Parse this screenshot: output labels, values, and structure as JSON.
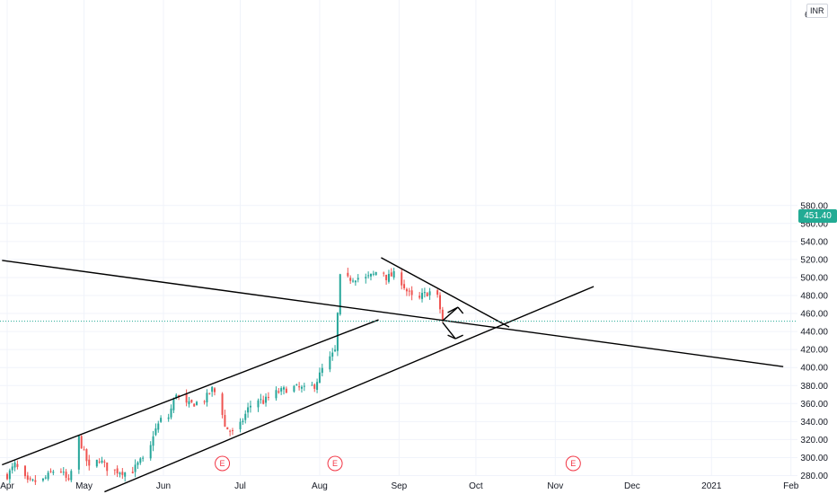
{
  "currency": "INR",
  "price": {
    "last_label": "451.40",
    "last": 451.4
  },
  "colors": {
    "up": "#26a69a",
    "down": "#ef5350",
    "last_price": "#22ab94",
    "earnings": "#f23645",
    "trendline": "#000000"
  },
  "earnings_marker": "E",
  "chart_data": {
    "type": "candlestick",
    "y_ticks": [
      "280.00",
      "300.00",
      "320.00",
      "340.00",
      "360.00",
      "380.00",
      "400.00",
      "420.00",
      "440.00",
      "460.00",
      "480.00",
      "500.00",
      "520.00",
      "540.00",
      "560.00",
      "580.00"
    ],
    "y_ticks_top_clipped": "6",
    "ylim": [
      262,
      606
    ],
    "x_ticks": [
      "Apr",
      "May",
      "Jun",
      "Jul",
      "Aug",
      "Sep",
      "Oct",
      "Nov",
      "Dec",
      "2021",
      "Feb"
    ],
    "x_tick_days": [
      0,
      30,
      61,
      91,
      122,
      153,
      183,
      214,
      244,
      275,
      306
    ],
    "earnings_days": [
      84,
      128,
      221
    ],
    "last_price": 451.4,
    "trendlines": [
      {
        "name": "channel-upper",
        "from": [
          -2,
          292
        ],
        "to": [
          145,
          453
        ]
      },
      {
        "name": "channel-lower",
        "from": [
          38,
          262
        ],
        "to": [
          229,
          490
        ]
      },
      {
        "name": "long-resistance",
        "from": [
          -2,
          519
        ],
        "to": [
          303,
          401
        ]
      },
      {
        "name": "wedge-upper",
        "from": [
          146,
          522
        ],
        "to": [
          196,
          445
        ]
      },
      {
        "name": "arrow-up-shaft",
        "from": [
          170,
          452
        ],
        "to": [
          176,
          467
        ]
      },
      {
        "name": "arrow-up-head-left",
        "from": [
          172,
          461
        ],
        "to": [
          176,
          467
        ]
      },
      {
        "name": "arrow-up-head-right",
        "from": [
          176,
          467
        ],
        "to": [
          178,
          460
        ]
      },
      {
        "name": "arrow-down-shaft",
        "from": [
          170,
          450
        ],
        "to": [
          175,
          432
        ]
      },
      {
        "name": "arrow-down-head-left",
        "from": [
          172,
          436
        ],
        "to": [
          175,
          432
        ]
      },
      {
        "name": "arrow-down-head-right",
        "from": [
          175,
          432
        ],
        "to": [
          178,
          436
        ]
      }
    ],
    "price_path": [
      [
        0,
        280
      ],
      [
        3,
        292
      ],
      [
        8,
        272
      ],
      [
        14,
        275
      ],
      [
        20,
        290
      ],
      [
        24,
        272
      ],
      [
        28,
        322
      ],
      [
        32,
        288
      ],
      [
        36,
        298
      ],
      [
        40,
        285
      ],
      [
        44,
        285
      ],
      [
        48,
        282
      ],
      [
        52,
        296
      ],
      [
        55,
        298
      ],
      [
        57,
        326
      ],
      [
        60,
        342
      ],
      [
        63,
        345
      ],
      [
        66,
        372
      ],
      [
        69,
        358
      ],
      [
        73,
        360
      ],
      [
        77,
        364
      ],
      [
        80,
        376
      ],
      [
        83,
        366
      ],
      [
        85,
        334
      ],
      [
        88,
        328
      ],
      [
        91,
        336
      ],
      [
        94,
        354
      ],
      [
        97,
        366
      ],
      [
        100,
        362
      ],
      [
        104,
        371
      ],
      [
        108,
        375
      ],
      [
        112,
        378
      ],
      [
        116,
        376
      ],
      [
        120,
        380
      ],
      [
        123,
        398
      ],
      [
        126,
        410
      ],
      [
        128,
        418
      ],
      [
        130,
        500
      ],
      [
        133,
        498
      ],
      [
        136,
        500
      ],
      [
        140,
        499
      ],
      [
        143,
        503
      ],
      [
        146,
        512
      ],
      [
        148,
        500
      ],
      [
        151,
        503
      ],
      [
        154,
        495
      ],
      [
        156,
        485
      ],
      [
        158,
        478
      ],
      [
        160,
        472
      ],
      [
        162,
        480
      ],
      [
        165,
        484
      ],
      [
        167,
        486
      ],
      [
        168,
        478
      ],
      [
        169,
        465
      ],
      [
        170,
        452
      ]
    ]
  }
}
